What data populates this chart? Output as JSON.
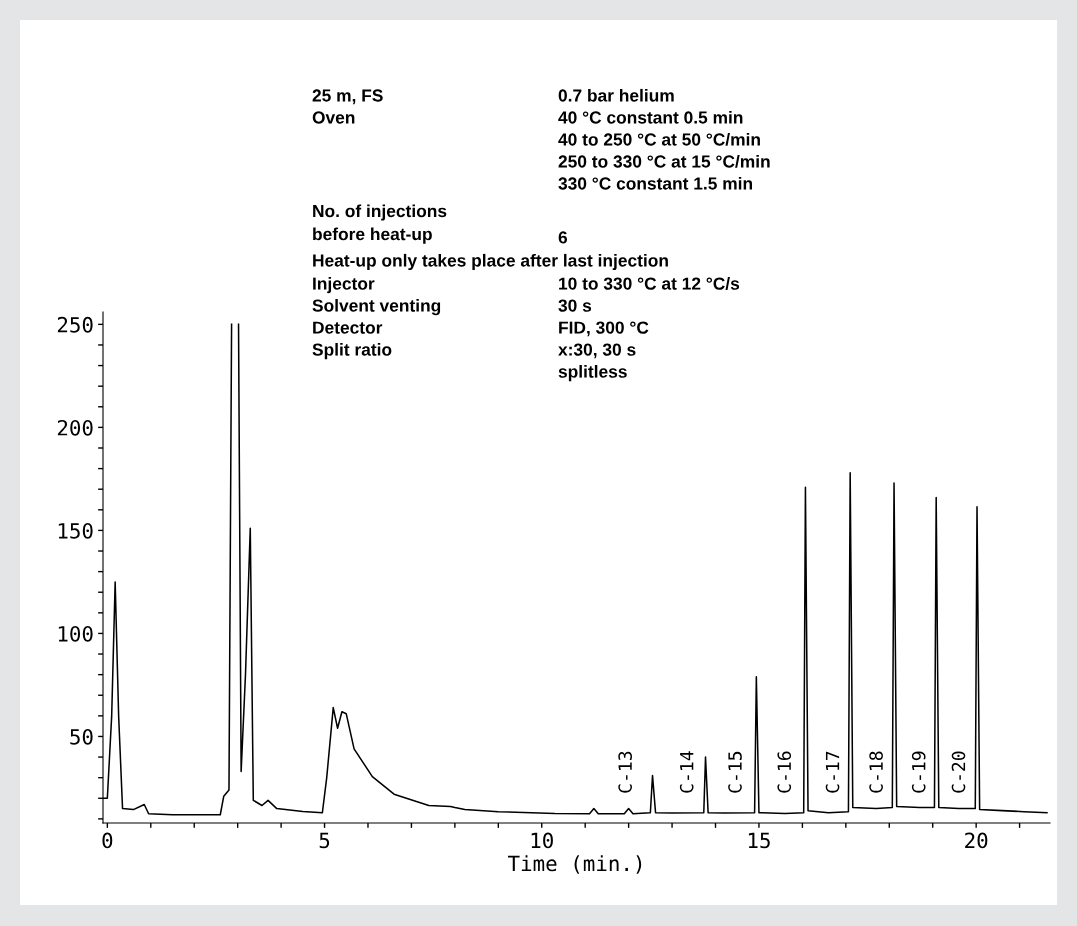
{
  "chart_data": {
    "type": "line",
    "xlabel": "Time (min.)",
    "x": [
      -0.1,
      0.0,
      0.1,
      0.18,
      0.26,
      0.35,
      0.6,
      0.85,
      0.95,
      1.5,
      2.6,
      2.68,
      2.8,
      2.86,
      2.9,
      3.0,
      3.02,
      3.08,
      3.18,
      3.29,
      3.36,
      3.56,
      3.7,
      3.9,
      4.5,
      4.95,
      5.05,
      5.2,
      5.3,
      5.4,
      5.5,
      5.68,
      6.1,
      6.6,
      7.4,
      7.9,
      8.0,
      8.23,
      9.0,
      10.3,
      11.1,
      11.2,
      11.3,
      11.9,
      12.0,
      12.1,
      12.5,
      12.55,
      12.62,
      13.0,
      13.73,
      13.77,
      13.83,
      14.2,
      14.9,
      14.94,
      15.0,
      15.6,
      16.03,
      16.07,
      16.13,
      16.6,
      17.06,
      17.1,
      17.16,
      17.7,
      18.07,
      18.11,
      18.17,
      18.7,
      19.04,
      19.08,
      19.14,
      19.6,
      19.98,
      20.02,
      20.08,
      20.6,
      21.1,
      21.63
    ],
    "series": [
      {
        "color": "#000000",
        "values": [
          20,
          20,
          60,
          125,
          60,
          15,
          14.5,
          17,
          12.5,
          12,
          12,
          21,
          24,
          250,
          null,
          null,
          250,
          33,
          80,
          151,
          19,
          16.5,
          19,
          15,
          13.6,
          13,
          30,
          64,
          54,
          62,
          61,
          44,
          30.5,
          22,
          16.5,
          16,
          15.5,
          14.6,
          13.5,
          12.6,
          12.5,
          15,
          12.5,
          12.5,
          15,
          12.5,
          13,
          31,
          13,
          12.8,
          13,
          40,
          13,
          12.8,
          13,
          79,
          13,
          12.6,
          13,
          171,
          14,
          13,
          13.5,
          178,
          15.5,
          15,
          15.5,
          173,
          16,
          15.5,
          15.5,
          166,
          15.5,
          15,
          15,
          161.5,
          14.5,
          14,
          13.5,
          13
        ]
      }
    ],
    "xlim": [
      -0.1,
      21.7
    ],
    "xticks": [
      0,
      {
        "value": 1,
        "label": null
      },
      {
        "value": 2,
        "label": null
      },
      {
        "value": 3,
        "label": null
      },
      {
        "value": 4,
        "label": null
      },
      5,
      {
        "value": 6,
        "label": null
      },
      {
        "value": 7,
        "label": null
      },
      {
        "value": 8,
        "label": null
      },
      {
        "value": 9,
        "label": null
      },
      10,
      {
        "value": 11,
        "label": null
      },
      {
        "value": 12,
        "label": null
      },
      {
        "value": 13,
        "label": null
      },
      {
        "value": 14,
        "label": null
      },
      15,
      {
        "value": 16,
        "label": null
      },
      {
        "value": 17,
        "label": null
      },
      {
        "value": 18,
        "label": null
      },
      {
        "value": 19,
        "label": null
      },
      20,
      {
        "value": 21,
        "label": null
      }
    ],
    "ylim": [
      8,
      256
    ],
    "yticks": [
      {
        "value": 10,
        "label": null
      },
      {
        "value": 20,
        "label": null
      },
      {
        "value": 30,
        "label": null
      },
      {
        "value": 40,
        "label": null
      },
      50,
      {
        "value": 60,
        "label": null
      },
      {
        "value": 70,
        "label": null
      },
      {
        "value": 80,
        "label": null
      },
      {
        "value": 90,
        "label": null
      },
      100,
      {
        "value": 110,
        "label": null
      },
      {
        "value": 120,
        "label": null
      },
      {
        "value": 130,
        "label": null
      },
      {
        "value": 140,
        "label": null
      },
      150,
      {
        "value": 160,
        "label": null
      },
      {
        "value": 170,
        "label": null
      },
      {
        "value": 180,
        "label": null
      },
      {
        "value": 190,
        "label": null
      },
      200,
      {
        "value": 210,
        "label": null
      },
      {
        "value": 220,
        "label": null
      },
      {
        "value": 230,
        "label": null
      },
      {
        "value": 240,
        "label": null
      },
      250
    ],
    "grid": false,
    "marker": "none",
    "line_style": "solid",
    "annotations": [
      "C-13",
      "C-14",
      "C-15",
      "C-16",
      "C-17",
      "C-18",
      "C-19",
      "C-20",
      "25 m, FS",
      "0.7 bar helium",
      "Oven",
      "40 °C constant 0.5 min",
      "40 to 250 °C at 50 °C/min",
      "250 to 330 °C at 15 °C/min",
      "330 °C constant 1.5 min",
      "No. of injections",
      "before heat-up",
      "6",
      "Heat-up only takes place after last injection",
      "Injector",
      "10 to 330 °C at 12 °C/s",
      "Solvent venting",
      "30 s",
      "Detector",
      "FID, 300 °C",
      "Split ratio",
      "x:30, 30 s",
      "splitless"
    ]
  }
}
